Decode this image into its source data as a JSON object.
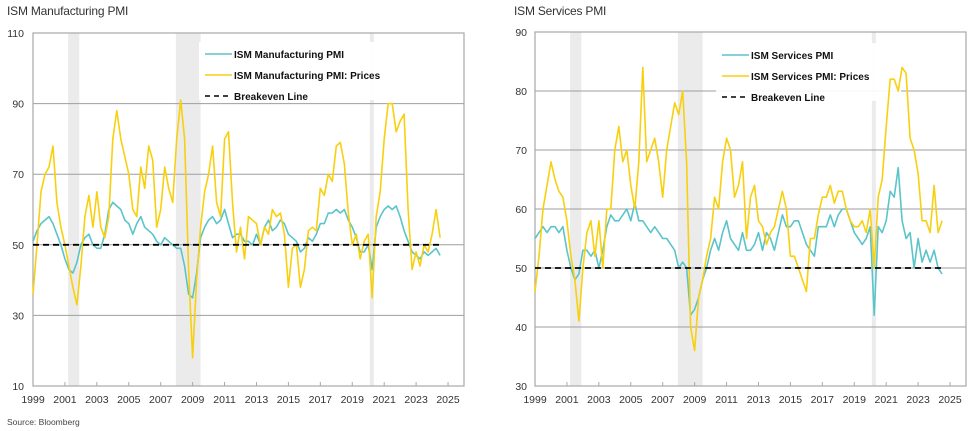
{
  "source": "Source: Bloomberg",
  "colors": {
    "pmi": "#5bc4cb",
    "prices": "#f8d00f",
    "breakeven": "#000000",
    "recession": "#ebebeb",
    "grid": "#9e9e9e",
    "frame": "#a8a8a8"
  },
  "chart_data": [
    {
      "type": "line",
      "title": "ISM Manufacturing PMI",
      "xlabel": "",
      "ylabel": "",
      "xlim": [
        1999,
        2026
      ],
      "ylim": [
        10,
        110
      ],
      "x_ticks": [
        "1999",
        "2001",
        "2003",
        "2005",
        "2007",
        "2009",
        "2011",
        "2013",
        "2015",
        "2017",
        "2019",
        "2021",
        "2023",
        "2025"
      ],
      "y_ticks": [
        "10",
        "30",
        "50",
        "70",
        "90",
        "110"
      ],
      "grid": true,
      "legend_position": "top-center",
      "recessions": [
        [
          2001.2,
          2001.9
        ],
        [
          2007.95,
          2009.5
        ],
        [
          2020.1,
          2020.35
        ]
      ],
      "x_start": 1999.0,
      "x_step": 0.25,
      "series": [
        {
          "name": "ISM Manufacturing PMI",
          "style": "solid",
          "values": [
            51,
            54,
            56,
            57,
            58,
            56,
            53,
            50,
            46,
            43,
            42,
            45,
            50,
            52,
            53,
            50,
            49,
            49,
            53,
            60,
            62,
            61,
            60,
            57,
            56,
            53,
            56,
            58,
            55,
            54,
            53,
            51,
            50,
            52,
            51,
            50,
            49,
            49,
            44,
            36,
            35,
            42,
            52,
            55,
            57,
            58,
            56,
            57,
            60,
            56,
            52,
            53,
            53,
            51,
            51,
            50,
            53,
            50,
            55,
            57,
            54,
            55,
            57,
            56,
            53,
            52,
            51,
            48,
            49,
            52,
            51,
            53,
            56,
            56,
            59,
            59,
            60,
            59,
            60,
            57,
            55,
            52,
            48,
            48,
            50,
            43,
            55,
            58,
            60,
            61,
            60,
            61,
            58,
            54,
            51,
            48,
            47,
            46,
            48,
            47,
            48,
            49,
            47
          ]
        },
        {
          "name": "ISM Manufacturing PMI: Prices",
          "style": "solid",
          "values": [
            36,
            50,
            65,
            70,
            72,
            78,
            62,
            55,
            50,
            44,
            38,
            33,
            44,
            58,
            64,
            55,
            65,
            55,
            52,
            58,
            80,
            88,
            80,
            75,
            70,
            60,
            58,
            72,
            66,
            78,
            74,
            55,
            60,
            72,
            66,
            62,
            80,
            91,
            80,
            43,
            18,
            40,
            55,
            65,
            70,
            78,
            62,
            58,
            80,
            82,
            62,
            48,
            55,
            46,
            58,
            57,
            56,
            50,
            55,
            53,
            60,
            58,
            59,
            53,
            38,
            49,
            50,
            38,
            43,
            54,
            55,
            54,
            66,
            64,
            70,
            68,
            78,
            79,
            73,
            59,
            50,
            53,
            46,
            51,
            53,
            35,
            58,
            65,
            80,
            90,
            90,
            82,
            85,
            87,
            60,
            43,
            48,
            44,
            50,
            48,
            53,
            60,
            52
          ]
        },
        {
          "name": "Breakeven Line",
          "style": "dashed",
          "constant": 50
        }
      ]
    },
    {
      "type": "line",
      "title": "ISM Services PMI",
      "xlabel": "",
      "ylabel": "",
      "xlim": [
        1999,
        2026
      ],
      "ylim": [
        30,
        90
      ],
      "x_ticks": [
        "1999",
        "2001",
        "2003",
        "2005",
        "2007",
        "2009",
        "2011",
        "2013",
        "2015",
        "2017",
        "2019",
        "2021",
        "2023",
        "2025"
      ],
      "y_ticks": [
        "30",
        "40",
        "50",
        "60",
        "70",
        "80",
        "90"
      ],
      "grid": true,
      "legend_position": "top-center",
      "recessions": [
        [
          2001.2,
          2001.9
        ],
        [
          2007.95,
          2009.5
        ],
        [
          2020.1,
          2020.35
        ]
      ],
      "x_start": 1999.0,
      "x_step": 0.25,
      "series": [
        {
          "name": "ISM Services PMI",
          "style": "solid",
          "values": [
            55,
            56,
            57,
            56,
            57,
            57,
            56,
            57,
            53,
            50,
            48,
            49,
            53,
            53,
            52,
            53,
            50,
            53,
            57,
            59,
            58,
            58,
            59,
            60,
            58,
            61,
            58,
            58,
            57,
            56,
            57,
            56,
            55,
            55,
            54,
            53,
            50,
            51,
            50,
            42,
            43,
            45,
            48,
            50,
            53,
            55,
            53,
            56,
            58,
            55,
            54,
            53,
            56,
            53,
            53,
            54,
            56,
            53,
            56,
            55,
            53,
            56,
            59,
            57,
            57,
            58,
            58,
            56,
            54,
            53,
            52,
            57,
            57,
            57,
            59,
            57,
            59,
            60,
            60,
            58,
            56,
            55,
            54,
            55,
            57,
            42,
            57,
            56,
            58,
            63,
            62,
            67,
            58,
            55,
            56,
            50,
            55,
            51,
            53,
            51,
            53,
            50,
            49
          ]
        },
        {
          "name": "ISM Services PMI: Prices",
          "style": "solid",
          "values": [
            46,
            52,
            60,
            64,
            68,
            65,
            63,
            62,
            58,
            52,
            48,
            41,
            50,
            56,
            58,
            52,
            58,
            50,
            60,
            60,
            70,
            74,
            68,
            70,
            64,
            60,
            68,
            84,
            68,
            70,
            72,
            68,
            62,
            70,
            74,
            78,
            76,
            80,
            68,
            40,
            36,
            45,
            48,
            52,
            55,
            62,
            60,
            68,
            72,
            70,
            62,
            64,
            68,
            55,
            62,
            64,
            58,
            57,
            54,
            56,
            57,
            60,
            63,
            60,
            52,
            52,
            50,
            48,
            46,
            55,
            55,
            59,
            62,
            62,
            64,
            61,
            63,
            63,
            60,
            58,
            57,
            57,
            58,
            56,
            60,
            50,
            62,
            65,
            74,
            82,
            82,
            80,
            84,
            83,
            72,
            70,
            66,
            58,
            58,
            56,
            64,
            56,
            58
          ]
        },
        {
          "name": "Breakeven Line",
          "style": "dashed",
          "constant": 50
        }
      ]
    }
  ]
}
